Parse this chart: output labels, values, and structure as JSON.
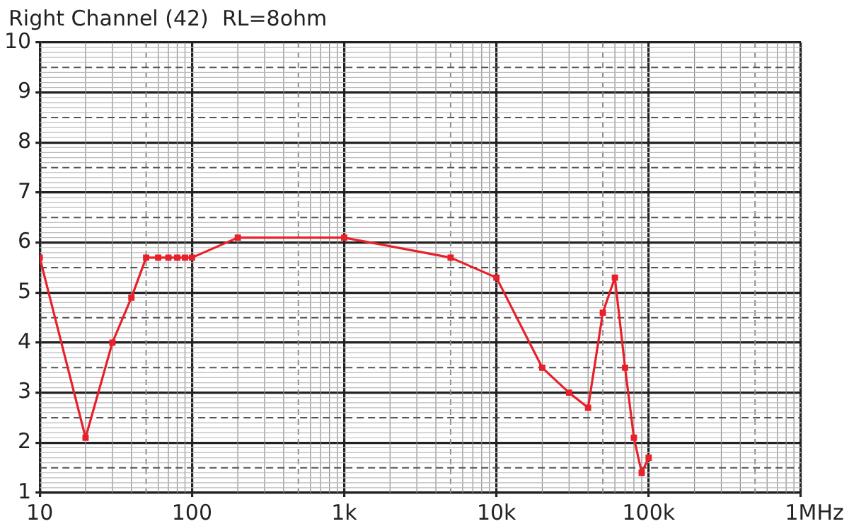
{
  "chart_data": {
    "type": "line",
    "title": "Right Channel (42)  RL=8ohm",
    "x": [
      10,
      20,
      30,
      40,
      50,
      60,
      70,
      80,
      90,
      100,
      200,
      1000,
      5000,
      10000,
      20000,
      30000,
      40000,
      50000,
      60000,
      70000,
      80000,
      90000,
      100000
    ],
    "series": [
      {
        "color": "#e8202a",
        "values": [
          5.7,
          2.1,
          4.0,
          4.9,
          5.7,
          5.7,
          5.7,
          5.7,
          5.7,
          5.7,
          6.1,
          6.1,
          5.7,
          5.3,
          3.5,
          3.0,
          2.7,
          4.6,
          5.3,
          3.5,
          2.1,
          1.4,
          1.7
        ]
      }
    ],
    "log": "x",
    "xlim": [
      10,
      1000000
    ],
    "ylim": [
      1,
      10
    ],
    "xticks": [
      10,
      100,
      {
        "value": 1000,
        "label": "1k"
      },
      {
        "value": 10000,
        "label": "10k"
      },
      {
        "value": 100000,
        "label": "100k"
      },
      {
        "value": 1000000,
        "label": "1M"
      }
    ],
    "xlabel": "Hz",
    "yticks": [
      1,
      2,
      3,
      4,
      5,
      6,
      7,
      8,
      9,
      10
    ],
    "grid": true,
    "legend": false,
    "marker": "square",
    "line_style": "solid"
  }
}
